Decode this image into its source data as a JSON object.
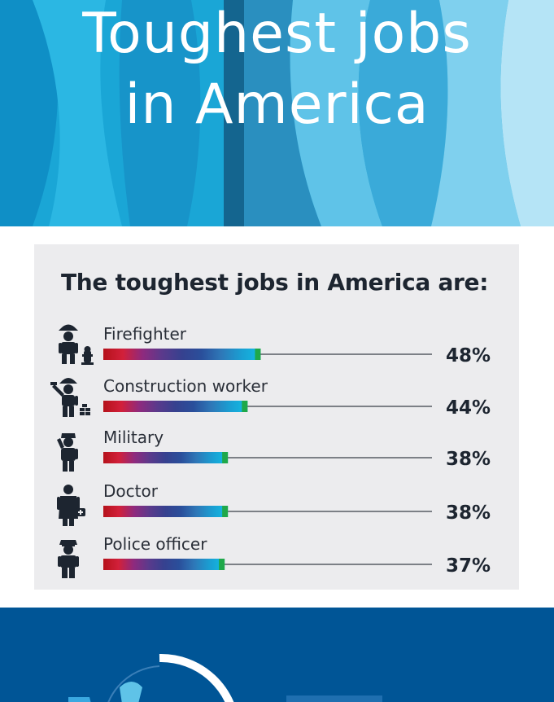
{
  "hero": {
    "title_lines": [
      "Toughest jobs",
      "in America"
    ]
  },
  "colors": {
    "hero_bg": "#1aa6d6",
    "panel_bg": "#ececee",
    "bottom_bg": "#005596",
    "text_dark": "#1d2530",
    "bar_gradient": [
      "#b5121b",
      "#d2203a",
      "#8e2a7e",
      "#5a3a8c",
      "#36418f",
      "#2a4f9b",
      "#2e78b8",
      "#1a9ed2",
      "#12bde4"
    ],
    "bar_end": "#1fa84a"
  },
  "chart_data": {
    "type": "bar",
    "title": "The toughest jobs in America are:",
    "categories": [
      "Firefighter",
      "Construction worker",
      "Military",
      "Doctor",
      "Police officer"
    ],
    "values": [
      48,
      44,
      38,
      38,
      37
    ],
    "value_labels": [
      "48%",
      "44%",
      "38%",
      "38%",
      "37%"
    ],
    "icons": [
      "firefighter-icon",
      "construction-worker-icon",
      "military-icon",
      "doctor-icon",
      "police-officer-icon"
    ],
    "unit": "%",
    "xlim": [
      0,
      100
    ],
    "grid": false,
    "legend": "none"
  }
}
